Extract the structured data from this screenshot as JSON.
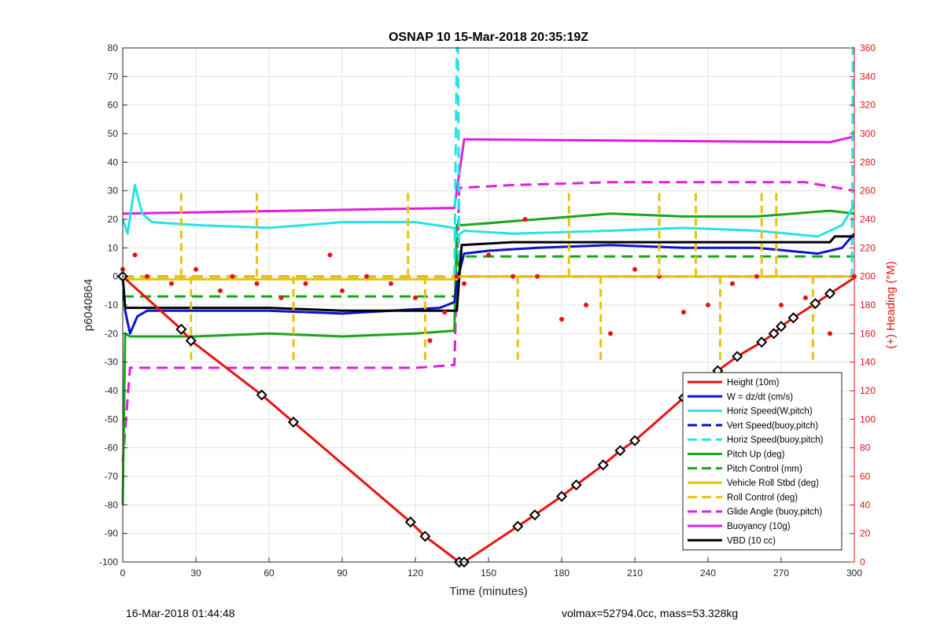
{
  "chart_data": {
    "type": "line",
    "title": "OSNAP 10 15-Mar-2018 20:35:19Z",
    "xlabel": "Time (minutes)",
    "ylabel": "p6040864",
    "y2label": "(+) Heading (°M)",
    "xlim": [
      0,
      300
    ],
    "ylim": [
      -100,
      80
    ],
    "y2lim": [
      0,
      360
    ],
    "xticks": [
      0,
      30,
      60,
      90,
      120,
      150,
      180,
      210,
      240,
      270,
      300
    ],
    "yticks": [
      -100,
      -90,
      -80,
      -70,
      -60,
      -50,
      -40,
      -30,
      -20,
      -10,
      0,
      10,
      20,
      30,
      40,
      50,
      60,
      70,
      80
    ],
    "y2ticks": [
      0,
      20,
      40,
      60,
      80,
      100,
      120,
      140,
      160,
      180,
      200,
      220,
      240,
      260,
      280,
      300,
      320,
      340,
      360
    ],
    "grid": true,
    "legend_position": "bottom-right",
    "colors": {
      "red": "#e8120d",
      "blue": "#0a14c8",
      "cyan": "#26e3e6",
      "green": "#1aa61a",
      "yellow": "#e8c20c",
      "magenta": "#e01de0",
      "black": "#000000"
    },
    "series": [
      {
        "name": "Height (10m)",
        "color": "red",
        "style": "solid",
        "x": [
          0,
          24,
          28,
          57,
          70,
          118,
          124,
          138,
          140,
          162,
          169,
          180,
          186,
          197,
          204,
          210,
          230,
          236,
          244,
          252,
          262,
          267,
          270,
          275,
          284,
          290,
          300
        ],
        "y": [
          0,
          -18.5,
          -22.5,
          -41.5,
          -51,
          -86,
          -91,
          -100,
          -100,
          -87.5,
          -83.5,
          -77,
          -73,
          -66,
          -61,
          -57.5,
          -42.5,
          -38,
          -33,
          -28,
          -23,
          -20,
          -17.5,
          -14.5,
          -9.5,
          -6,
          -0.5
        ]
      },
      {
        "name": "W = dz/dt (cm/s)",
        "color": "blue",
        "style": "solid",
        "x": [
          0,
          1,
          3,
          6,
          10,
          20,
          40,
          60,
          90,
          110,
          130,
          136,
          137,
          140,
          150,
          170,
          200,
          230,
          260,
          285,
          295,
          300
        ],
        "y": [
          0,
          -12,
          -20,
          -14,
          -12,
          -12,
          -12,
          -12,
          -13,
          -12,
          -11,
          -9,
          -2,
          8,
          9,
          10,
          11,
          10,
          10,
          8,
          10,
          15
        ]
      },
      {
        "name": "Horiz Speed(W,pitch)",
        "color": "cyan",
        "style": "solid",
        "x": [
          0,
          2,
          5,
          8,
          12,
          30,
          60,
          90,
          120,
          136,
          137,
          140,
          160,
          200,
          230,
          260,
          285,
          295,
          300
        ],
        "y": [
          20,
          15,
          32,
          22,
          19,
          18,
          17,
          19,
          19,
          17,
          14,
          16,
          15,
          16,
          17,
          16,
          14,
          18,
          25
        ]
      },
      {
        "name": "Vert Speed(buoy,pitch)",
        "color": "blue",
        "style": "dashed",
        "x": [
          0,
          137,
          138,
          300
        ],
        "y": [
          0,
          0,
          0,
          0
        ]
      },
      {
        "name": "Horiz Speed(buoy,pitch)",
        "color": "cyan",
        "style": "dashed",
        "x": [
          136,
          137,
          137.5,
          138,
          299,
          299.5,
          300
        ],
        "y": [
          0,
          80,
          80,
          0,
          0,
          80,
          80
        ]
      },
      {
        "name": "Pitch Up (deg)",
        "color": "green",
        "style": "solid",
        "x": [
          0,
          1,
          3,
          30,
          60,
          90,
          120,
          136,
          137,
          140,
          170,
          200,
          230,
          260,
          290,
          300
        ],
        "y": [
          -80,
          -20,
          -21,
          -21,
          -20,
          -21,
          -20,
          -19,
          18,
          18,
          20,
          22,
          21,
          21,
          23,
          22
        ]
      },
      {
        "name": "Pitch Control (mm)",
        "color": "green",
        "style": "dashed",
        "x": [
          0,
          137,
          138,
          300
        ],
        "y": [
          -7,
          -7,
          7,
          7
        ]
      },
      {
        "name": "Vehicle Roll Stbd (deg)",
        "color": "yellow",
        "style": "solid",
        "x": [
          0,
          137,
          138,
          300
        ],
        "y": [
          -1,
          -1,
          0,
          0
        ]
      },
      {
        "name": "Roll Control (deg)",
        "color": "yellow",
        "style": "dashed",
        "x": [
          0,
          300
        ],
        "y": [
          0,
          0
        ]
      },
      {
        "name": "Glide Angle (buoy,pitch)",
        "color": "magenta",
        "style": "dashed",
        "x": [
          0,
          3,
          30,
          60,
          90,
          120,
          136,
          137,
          138,
          160,
          200,
          240,
          280,
          300
        ],
        "y": [
          -65,
          -32,
          -32,
          -32,
          -32,
          -32,
          -31,
          0,
          31,
          32,
          33,
          33,
          33,
          30
        ]
      },
      {
        "name": "Buoyancy (10g)",
        "color": "magenta",
        "style": "solid",
        "x": [
          0,
          136,
          140,
          290,
          300
        ],
        "y": [
          22,
          24,
          48,
          47,
          49
        ]
      },
      {
        "name": "VBD (10 cc)",
        "color": "black",
        "style": "solid",
        "x": [
          0,
          1,
          30,
          60,
          90,
          120,
          137,
          139,
          160,
          200,
          240,
          290,
          292,
          300
        ],
        "y": [
          0,
          -11,
          -11,
          -11,
          -12,
          -12,
          -12,
          11,
          12,
          12,
          12,
          12,
          14,
          14
        ]
      },
      {
        "name": "Heading",
        "color": "red",
        "style": "dotted",
        "axis": "right",
        "x": [
          0,
          5,
          10,
          20,
          30,
          40,
          45,
          55,
          65,
          75,
          85,
          90,
          100,
          110,
          120,
          126,
          132,
          137,
          140,
          150,
          160,
          165,
          170,
          180,
          190,
          200,
          210,
          220,
          230,
          240,
          250,
          260,
          270,
          280,
          290,
          300
        ],
        "y": [
          205,
          215,
          200,
          195,
          205,
          190,
          200,
          195,
          185,
          195,
          215,
          190,
          200,
          195,
          185,
          155,
          175,
          200,
          195,
          215,
          200,
          240,
          200,
          170,
          180,
          160,
          205,
          200,
          175,
          180,
          195,
          200,
          180,
          185,
          160,
          200
        ]
      }
    ],
    "markers": {
      "x": [
        0,
        24,
        28,
        57,
        70,
        118,
        124,
        138,
        140,
        162,
        169,
        180,
        186,
        197,
        204,
        210,
        230,
        236,
        244,
        252,
        262,
        267,
        270,
        275,
        284,
        290
      ],
      "y": [
        0,
        -18.5,
        -22.5,
        -41.5,
        -51,
        -86,
        -91,
        -100,
        -100,
        -87.5,
        -83.5,
        -77,
        -73,
        -66,
        -61,
        -57.5,
        -42.5,
        -38,
        -33,
        -28,
        -23,
        -20,
        -17.5,
        -14.5,
        -9.5,
        -6
      ]
    },
    "roll_spikes": {
      "x": [
        24,
        28,
        55,
        70,
        117,
        124,
        162,
        183,
        196,
        220,
        235,
        245,
        262,
        268,
        283
      ],
      "y": [
        30,
        -30,
        30,
        -30,
        30,
        -30,
        -30,
        30,
        -30,
        30,
        30,
        -30,
        30,
        30,
        -30
      ]
    }
  },
  "footer": {
    "left": "16-Mar-2018 01:44:48",
    "right": "volmax=52794.0cc, mass=53.328kg"
  }
}
